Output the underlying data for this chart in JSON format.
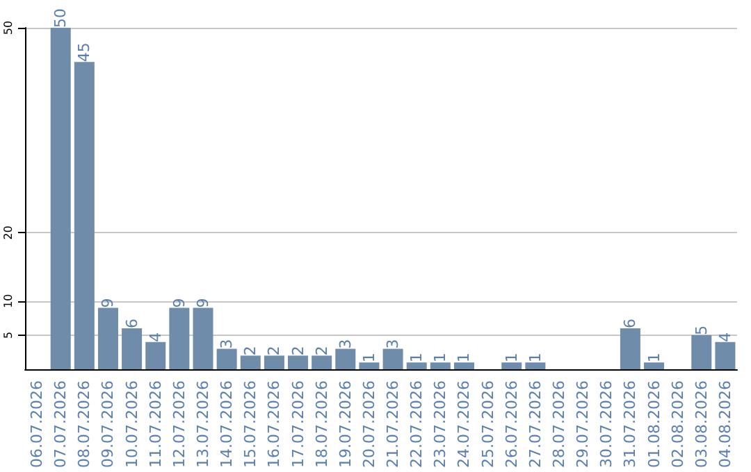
{
  "chart_data": {
    "type": "bar",
    "categories": [
      "06.07.2026",
      "07.07.2026",
      "08.07.2026",
      "09.07.2026",
      "10.07.2026",
      "11.07.2026",
      "12.07.2026",
      "13.07.2026",
      "14.07.2026",
      "15.07.2026",
      "16.07.2026",
      "17.07.2026",
      "18.07.2026",
      "19.07.2026",
      "20.07.2026",
      "21.07.2026",
      "22.07.2026",
      "23.07.2026",
      "24.07.2026",
      "25.07.2026",
      "26.07.2026",
      "27.07.2026",
      "28.07.2026",
      "29.07.2026",
      "30.07.2026",
      "31.07.2026",
      "01.08.2026",
      "02.08.2026",
      "03.08.2026",
      "04.08.2026"
    ],
    "values": [
      null,
      50,
      45,
      9,
      6,
      4,
      9,
      9,
      3,
      2,
      2,
      2,
      2,
      3,
      1,
      3,
      1,
      1,
      1,
      null,
      1,
      1,
      null,
      null,
      null,
      6,
      1,
      null,
      5,
      4
    ],
    "color": "#6f8caa",
    "ylim": [
      0,
      50
    ],
    "yticks": [
      5,
      10,
      20,
      50
    ],
    "grid": "y",
    "data_labels": true
  }
}
